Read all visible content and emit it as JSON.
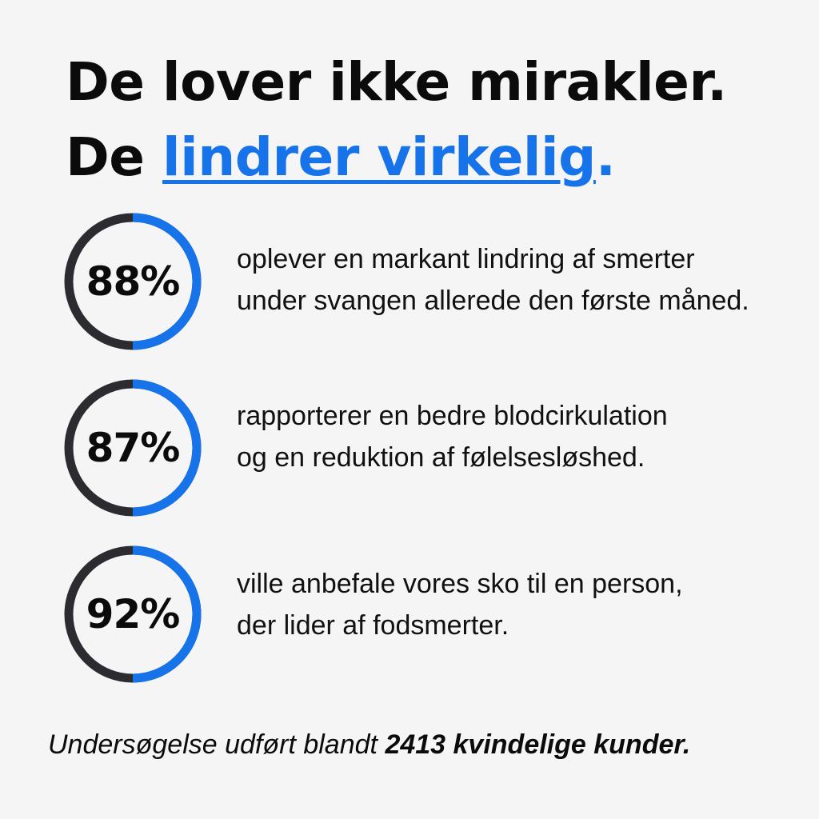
{
  "headline": {
    "line1": "De lover ikke mirakler.",
    "line2_prefix": "De ",
    "line2_accent": "lindrer virkelig",
    "line2_suffix": "."
  },
  "colors": {
    "accent": "#1673ea",
    "ring_track": "#2c2c30",
    "text": "#0b0b0b",
    "background": "#f5f5f5"
  },
  "stats": [
    {
      "value_label": "88%",
      "line1": "oplever en markant lindring af smerter",
      "line2": "under svangen allerede den første måned."
    },
    {
      "value_label": "87%",
      "line1": "rapporterer en bedre  blodcirkulation",
      "line2": "og en reduktion af følelsesløshed."
    },
    {
      "value_label": "92%",
      "line1": "ville anbefale vores sko til en person,",
      "line2": "der lider af fodsmerter."
    }
  ],
  "footnote": {
    "prefix": "Undersøgelse udført blandt ",
    "bold": "2413 kvindelige kunder."
  }
}
